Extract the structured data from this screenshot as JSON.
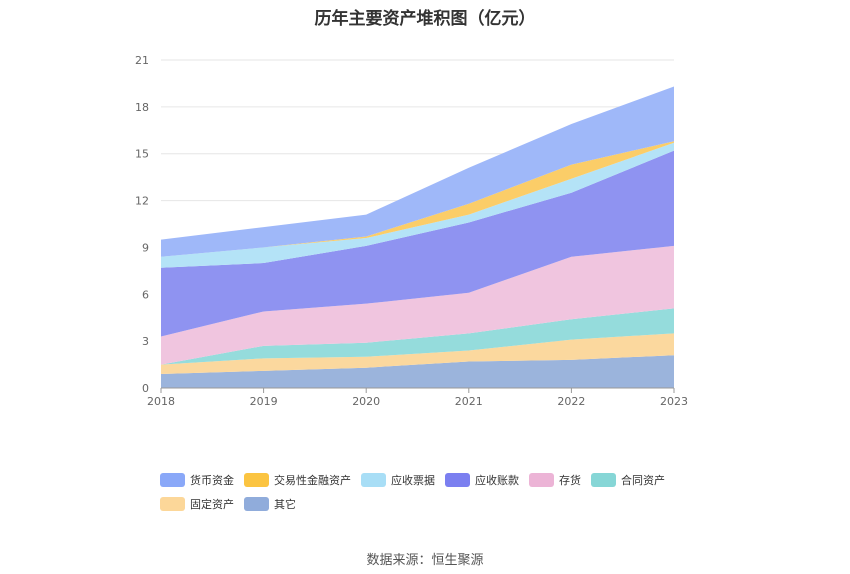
{
  "chart_data": {
    "type": "area",
    "stacked": true,
    "title": "历年主要资产堆积图（亿元）",
    "x": [
      "2018",
      "2019",
      "2020",
      "2021",
      "2022",
      "2023"
    ],
    "yticks": [
      "0",
      "3",
      "6",
      "9",
      "12",
      "15",
      "18",
      "21"
    ],
    "ylim": [
      0,
      21
    ],
    "grid": true,
    "legend_position": "bottom",
    "series": [
      {
        "name": "其它",
        "color": "#9bb4dc",
        "values": [
          0.9,
          1.1,
          1.3,
          1.7,
          1.8,
          2.1
        ]
      },
      {
        "name": "固定资产",
        "color": "#fbd89e",
        "values": [
          0.6,
          0.8,
          0.7,
          0.7,
          1.3,
          1.4
        ]
      },
      {
        "name": "合同资产",
        "color": "#95dcdc",
        "values": [
          0.0,
          0.8,
          0.9,
          1.1,
          1.3,
          1.6
        ]
      },
      {
        "name": "存货",
        "color": "#f0c5df",
        "values": [
          1.8,
          2.2,
          2.5,
          2.6,
          4.0,
          4.0
        ]
      },
      {
        "name": "应收账款",
        "color": "#8f93f1",
        "values": [
          4.4,
          3.1,
          3.7,
          4.5,
          4.1,
          6.1
        ]
      },
      {
        "name": "应收票据",
        "color": "#b4e3f7",
        "values": [
          0.7,
          1.0,
          0.5,
          0.5,
          0.9,
          0.5
        ]
      },
      {
        "name": "交易性金融资产",
        "color": "#fbcd68",
        "values": [
          0.0,
          0.0,
          0.1,
          0.7,
          0.9,
          0.1
        ]
      },
      {
        "name": "货币资金",
        "color": "#9fb8f9",
        "values": [
          1.1,
          1.3,
          1.4,
          2.3,
          2.6,
          3.5
        ]
      }
    ]
  },
  "legend": [
    {
      "label": "货币资金",
      "color": "#8aa8f8"
    },
    {
      "label": "交易性金融资产",
      "color": "#fbc441"
    },
    {
      "label": "应收票据",
      "color": "#a8def6"
    },
    {
      "label": "应收账款",
      "color": "#7b7ff0"
    },
    {
      "label": "存货",
      "color": "#ecb4d6"
    },
    {
      "label": "合同资产",
      "color": "#86d6d6"
    },
    {
      "label": "固定资产",
      "color": "#fcd799"
    },
    {
      "label": "其它",
      "color": "#90acdb"
    }
  ],
  "source": "数据来源：恒生聚源"
}
